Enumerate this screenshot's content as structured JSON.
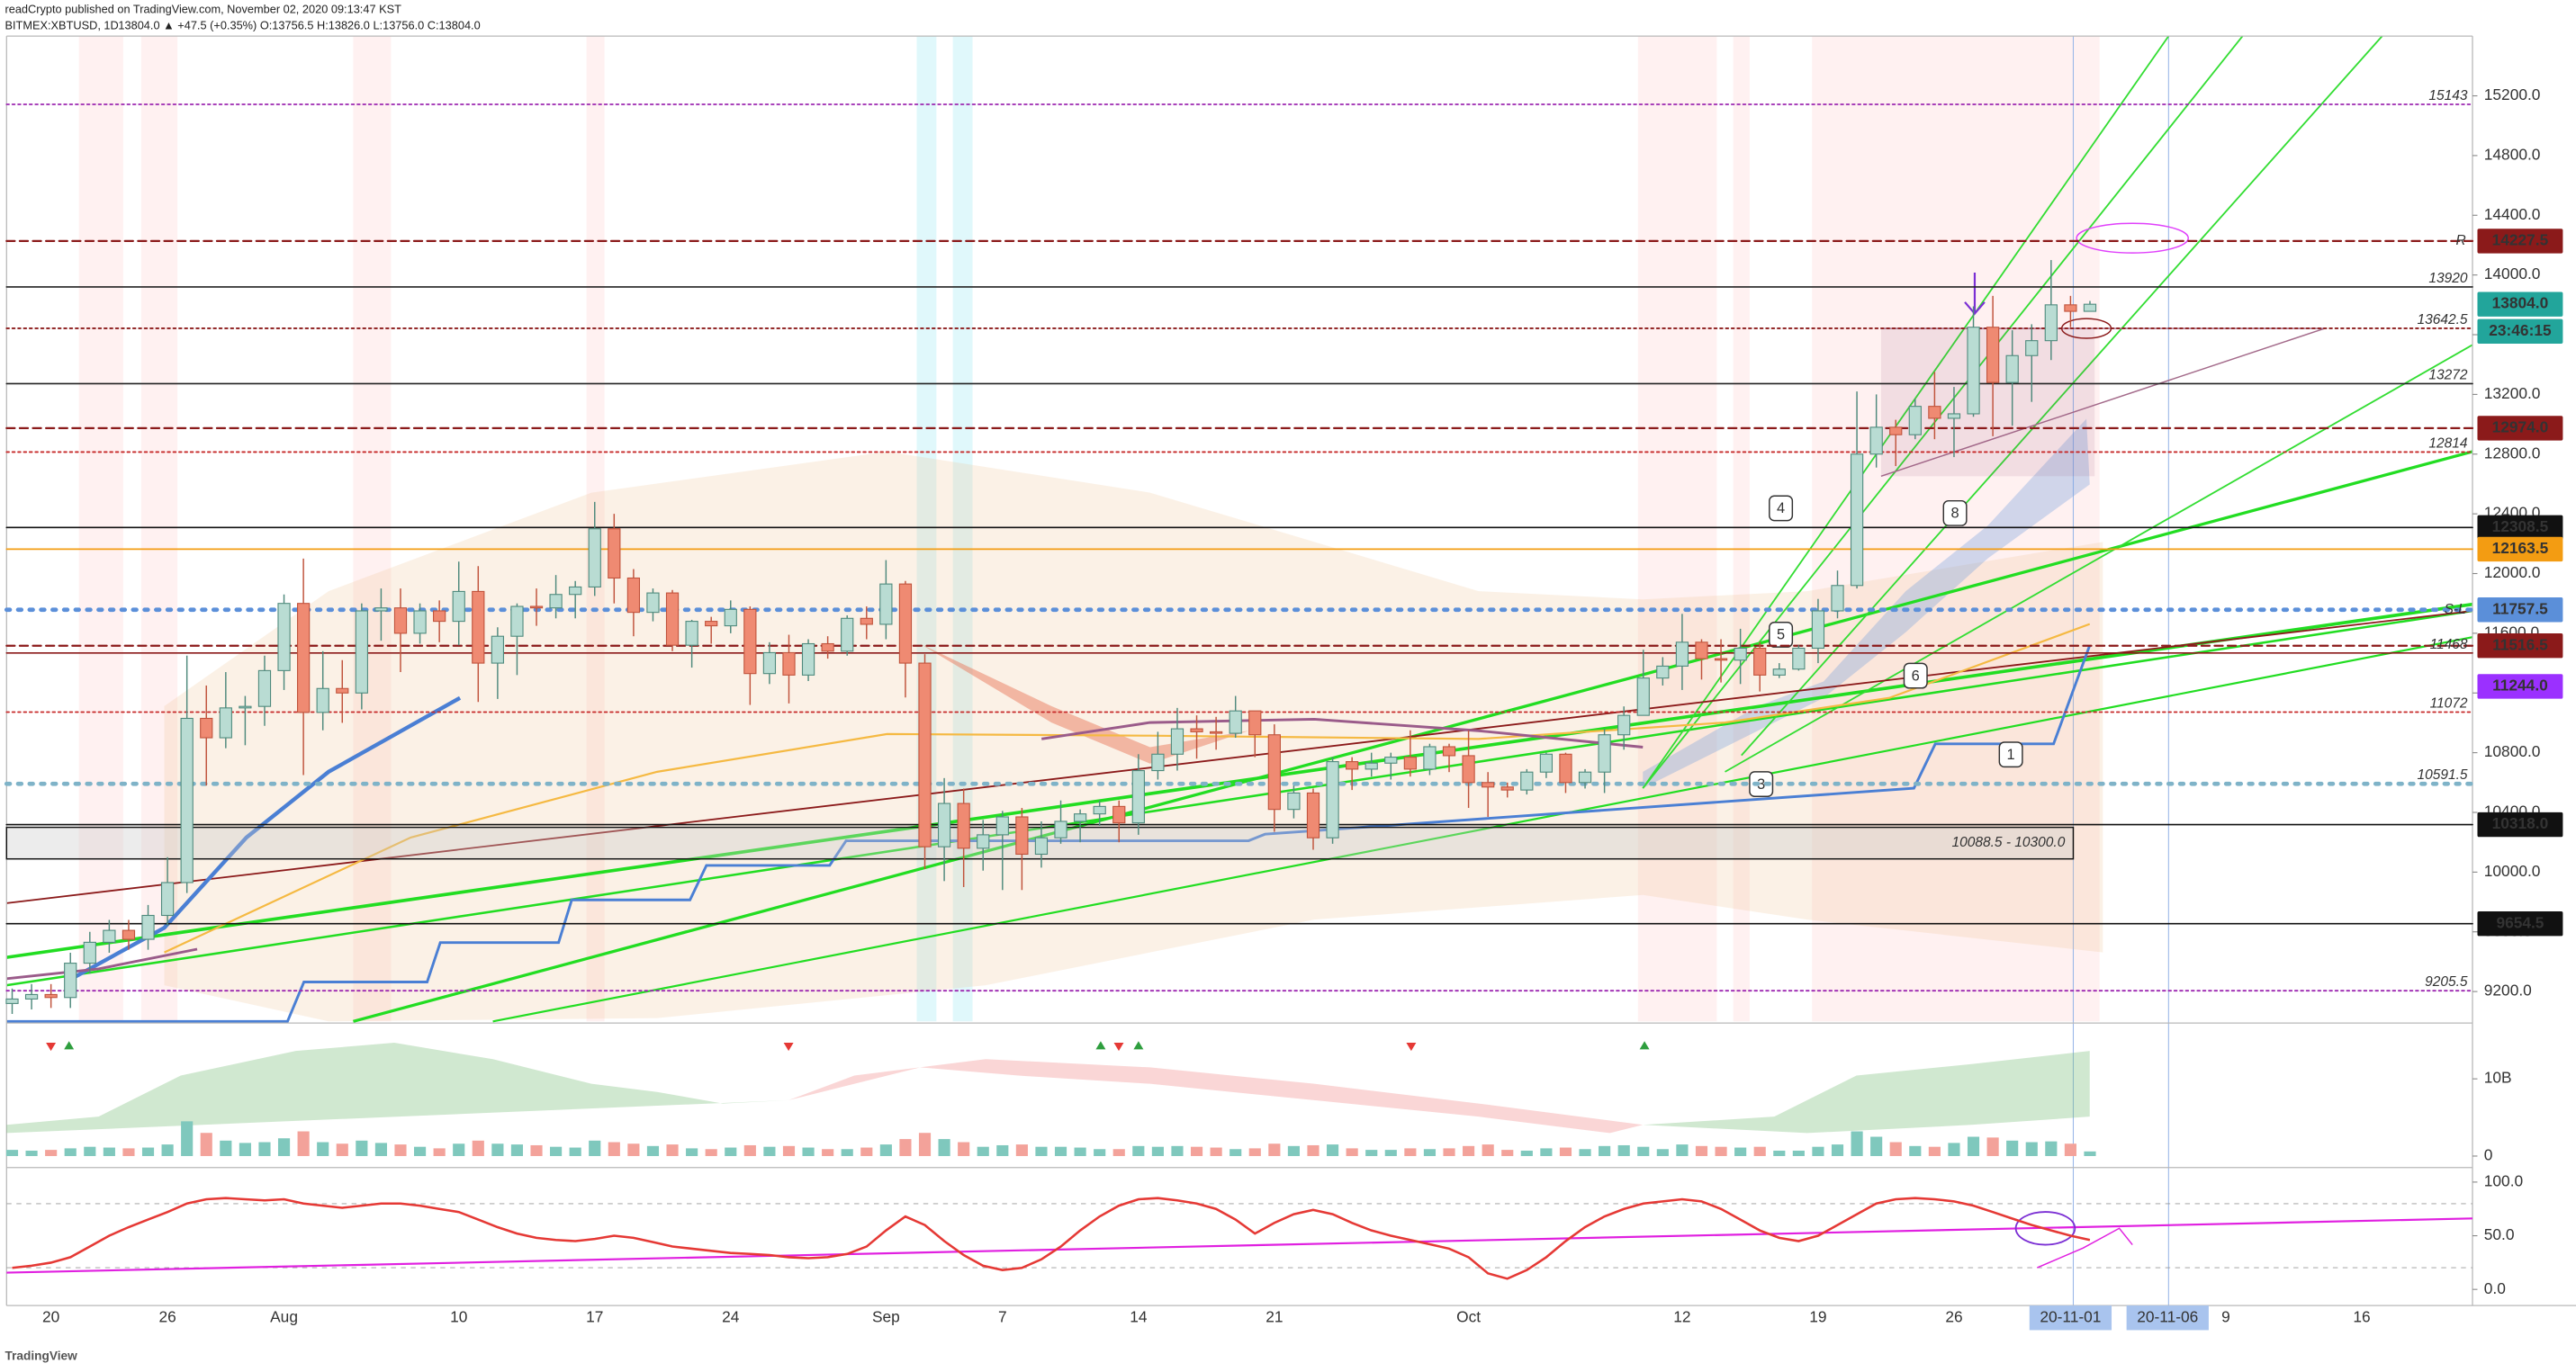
{
  "header": {
    "publisher": "readCrypto published on TradingView.com, November 02, 2020 09:13:47 KST",
    "symbol": "BITMEX:XBTUSD, 1D",
    "ohlc": "13804.0 ▲ +47.5 (+0.35%) O:13756.5 H:13826.0 L:13756.0 C:13804.0"
  },
  "footer": {
    "logo": "TradingView"
  },
  "chart_data": {
    "type": "candlestick",
    "categories": [
      null,
      null,
      "20",
      null,
      null,
      null,
      null,
      null,
      "26",
      null,
      null,
      null,
      null,
      null,
      "Aug",
      null,
      null,
      null,
      null,
      null,
      null,
      null,
      null,
      "10",
      null,
      null,
      null,
      null,
      null,
      null,
      "17",
      null,
      null,
      null,
      null,
      null,
      null,
      "24",
      null,
      null,
      null,
      null,
      null,
      null,
      null,
      "Sep",
      null,
      null,
      null,
      null,
      null,
      "7",
      null,
      null,
      null,
      null,
      null,
      null,
      "14",
      null,
      null,
      null,
      null,
      null,
      null,
      "21",
      null,
      null,
      null,
      null,
      null,
      null,
      null,
      null,
      null,
      "Oct",
      null,
      null,
      null,
      null,
      null,
      null,
      null,
      null,
      null,
      null,
      "12",
      null,
      null,
      null,
      null,
      null,
      null,
      "19",
      null,
      null,
      null,
      null,
      null,
      null,
      "26",
      null,
      null,
      null,
      null,
      null,
      "20-11-01",
      null,
      null,
      null,
      null,
      "20-11-06",
      null,
      null,
      "9",
      null,
      null,
      null,
      null,
      null,
      null,
      "16",
      null,
      null,
      null,
      null,
      null,
      null
    ],
    "open": [
      9120,
      9150,
      9180,
      9160,
      9390,
      9530,
      9610,
      9550,
      9710,
      9930,
      11030,
      10900,
      11100,
      11110,
      11350,
      11800,
      11070,
      11230,
      11200,
      11750,
      11770,
      11600,
      11750,
      11680,
      11880,
      11400,
      11580,
      11780,
      11770,
      11860,
      11910,
      12300,
      11970,
      11740,
      11870,
      11520,
      11680,
      11650,
      11760,
      11330,
      11470,
      11320,
      11530,
      11480,
      11700,
      11660,
      11930,
      11400,
      10170,
      10460,
      10160,
      10250,
      10370,
      10120,
      10230,
      10340,
      10390,
      10440,
      10330,
      10680,
      10790,
      10960,
      10940,
      10930,
      11080,
      10920,
      10420,
      10530,
      10230,
      10740,
      10690,
      10730,
      10770,
      10690,
      10840,
      10780,
      10600,
      10570,
      10550,
      10670,
      10790,
      10600,
      10670,
      10920,
      11050,
      11300,
      11380,
      11540,
      11430,
      11420,
      11500,
      11320,
      11360,
      11500,
      11750,
      11920,
      12800,
      12980,
      12930,
      13120,
      13040,
      13070,
      13650,
      13280,
      13460,
      13560,
      13800,
      13756.5,
      null,
      null,
      null,
      null,
      null,
      null,
      null,
      null,
      null,
      null,
      null,
      null,
      null,
      null,
      null,
      null,
      null,
      null,
      null,
      null
    ],
    "high": [
      9220,
      9250,
      9250,
      9460,
      9600,
      9680,
      9680,
      9780,
      10100,
      11450,
      11250,
      11340,
      11180,
      11450,
      11860,
      12100,
      11480,
      11420,
      11800,
      11900,
      11900,
      11800,
      11820,
      12080,
      12050,
      11640,
      11800,
      11900,
      11990,
      11950,
      12480,
      12400,
      12030,
      11900,
      11890,
      11690,
      11710,
      11820,
      11780,
      11540,
      11590,
      11560,
      11580,
      11720,
      11780,
      12090,
      11950,
      11460,
      10630,
      10560,
      10350,
      10410,
      10430,
      10340,
      10480,
      10420,
      10480,
      10480,
      10790,
      10940,
      11100,
      11050,
      11040,
      11180,
      11080,
      10990,
      10580,
      10560,
      10770,
      10770,
      10800,
      10800,
      10950,
      10860,
      10860,
      10950,
      10670,
      10600,
      10690,
      10800,
      10800,
      10690,
      10960,
      11110,
      11490,
      11440,
      11730,
      11560,
      11560,
      11630,
      11540,
      11400,
      11520,
      11830,
      12020,
      13220,
      13200,
      13030,
      13170,
      13350,
      13250,
      13790,
      13860,
      13630,
      13670,
      14100,
      13860,
      13826,
      null,
      null,
      null,
      null,
      null,
      null,
      null,
      null,
      null,
      null,
      null,
      null,
      null,
      null,
      null,
      null,
      null,
      null,
      null,
      null
    ],
    "low": [
      9050,
      9080,
      9090,
      9090,
      9320,
      9460,
      9480,
      9480,
      9640,
      9860,
      10580,
      10830,
      10850,
      10980,
      11220,
      10650,
      10950,
      11000,
      11090,
      11550,
      11340,
      11530,
      11540,
      11520,
      11140,
      11160,
      11320,
      11650,
      11700,
      11700,
      11850,
      11800,
      11580,
      11680,
      11480,
      11370,
      11530,
      11600,
      11120,
      11260,
      11130,
      11280,
      11430,
      11450,
      11560,
      11560,
      11170,
      10020,
      9940,
      9900,
      10010,
      9880,
      9880,
      10030,
      10190,
      10200,
      10310,
      10200,
      10250,
      10620,
      10680,
      10760,
      10820,
      10900,
      10770,
      10270,
      10360,
      10150,
      10190,
      10550,
      10640,
      10620,
      10640,
      10650,
      10670,
      10430,
      10370,
      10500,
      10520,
      10630,
      10530,
      10560,
      10530,
      10820,
      11050,
      11250,
      11220,
      11290,
      11270,
      11260,
      11210,
      11300,
      11350,
      11400,
      11700,
      11900,
      12710,
      12720,
      12900,
      12900,
      12780,
      13050,
      12920,
      12990,
      13150,
      13430,
      13650,
      13756,
      null,
      null,
      null,
      null,
      null,
      null,
      null,
      null,
      null,
      null,
      null,
      null,
      null,
      null,
      null,
      null,
      null,
      null,
      null,
      null
    ],
    "close": [
      9150,
      9180,
      9160,
      9390,
      9530,
      9610,
      9550,
      9710,
      9930,
      11030,
      10900,
      11100,
      11110,
      11350,
      11800,
      11070,
      11230,
      11200,
      11750,
      11770,
      11600,
      11750,
      11680,
      11880,
      11400,
      11580,
      11780,
      11770,
      11860,
      11910,
      12300,
      11970,
      11740,
      11870,
      11520,
      11680,
      11650,
      11760,
      11330,
      11470,
      11320,
      11530,
      11480,
      11700,
      11660,
      11930,
      11400,
      10170,
      10460,
      10160,
      10250,
      10370,
      10120,
      10230,
      10340,
      10390,
      10440,
      10330,
      10680,
      10790,
      10960,
      10940,
      10930,
      11080,
      10920,
      10420,
      10530,
      10230,
      10740,
      10690,
      10730,
      10770,
      10690,
      10840,
      10780,
      10600,
      10570,
      10550,
      10670,
      10790,
      10600,
      10670,
      10920,
      11050,
      11300,
      11380,
      11540,
      11430,
      11420,
      11500,
      11320,
      11360,
      11500,
      11750,
      11920,
      12800,
      12980,
      12930,
      13120,
      13040,
      13070,
      13650,
      13280,
      13460,
      13560,
      13800,
      13756.5,
      13804,
      null,
      null,
      null,
      null,
      null,
      null,
      null,
      null,
      null,
      null,
      null,
      null,
      null,
      null,
      null,
      null,
      null,
      null,
      null,
      null
    ],
    "up_color": "#b9dcd3",
    "up_stroke": "#4f8a7d",
    "down_color": "#ef8a72",
    "down_stroke": "#c0533c",
    "ylim": [
      9000,
      15600
    ],
    "yticks": [
      {
        "value": 9200,
        "label": "9200.0"
      },
      {
        "value": 9600,
        "label": "9600.0"
      },
      {
        "value": 10000,
        "label": "10000.0"
      },
      {
        "value": 10400,
        "label": "10400.0"
      },
      {
        "value": 10800,
        "label": "10800.0"
      },
      {
        "value": 11200,
        "label": "11200.0"
      },
      {
        "value": 11600,
        "label": "11600.0"
      },
      {
        "value": 12000,
        "label": "12000.0"
      },
      {
        "value": 12400,
        "label": "12400.0"
      },
      {
        "value": 12800,
        "label": "12800.0"
      },
      {
        "value": 13200,
        "label": "13200.0"
      },
      {
        "value": 13600,
        "label": "13600.0"
      },
      {
        "value": 14000,
        "label": "14000.0"
      },
      {
        "value": 14400,
        "label": "14400.0"
      },
      {
        "value": 14800,
        "label": "14800.0"
      },
      {
        "value": 15200,
        "label": "15200.0"
      }
    ],
    "grid": false,
    "levels": [
      {
        "value": 15143,
        "color": "#9c27b0",
        "style": "dotted",
        "display": "label"
      },
      {
        "value": 14227.5,
        "color": "#8b1a1a",
        "style": "dashed",
        "display": "badge",
        "tag": "R"
      },
      {
        "value": 13920,
        "color": "#222222",
        "style": "solid",
        "display": "label"
      },
      {
        "value": 13804,
        "label": "13804.0",
        "color": "#22a59b",
        "style": "none",
        "display": "badge",
        "countdown": "23:46:15"
      },
      {
        "value": 13642.5,
        "color": "#8b1a1a",
        "style": "dotted",
        "display": "label"
      },
      {
        "value": 13272,
        "color": "#222222",
        "style": "solid",
        "display": "label"
      },
      {
        "value": 12974,
        "label": "12974.0",
        "color": "#8b1a1a",
        "style": "dashed",
        "display": "badge"
      },
      {
        "value": 12814,
        "color": "#c62828",
        "style": "dotted",
        "display": "label"
      },
      {
        "value": 12308.5,
        "color": "#111111",
        "style": "solid",
        "display": "badge"
      },
      {
        "value": 12163.5,
        "color": "#f39c12",
        "style": "solid",
        "display": "badge"
      },
      {
        "value": 11757.5,
        "color": "#5b8fd9",
        "style": "bigdot",
        "display": "badge",
        "tag": "S-L"
      },
      {
        "value": 11516.5,
        "color": "#8b1a1a",
        "style": "dashed",
        "display": "badge"
      },
      {
        "value": 11468,
        "color": "#8b1a1a",
        "style": "solid",
        "display": "label"
      },
      {
        "value": 11244,
        "label": "11244.0",
        "color": "#9b30ff",
        "style": "none",
        "display": "badge"
      },
      {
        "value": 11072,
        "color": "#c62828",
        "style": "dotted",
        "display": "label"
      },
      {
        "value": 10591.5,
        "color": "#7fb3c8",
        "style": "bigdot",
        "display": "label"
      },
      {
        "value": 10318,
        "label": "10318.0",
        "color": "#111111",
        "style": "solid",
        "display": "badge"
      },
      {
        "value": 9654.5,
        "color": "#111111",
        "style": "solid",
        "display": "badge"
      },
      {
        "value": 9205.5,
        "color": "#9c27b0",
        "style": "dotted",
        "display": "label"
      }
    ],
    "zone": {
      "low": 10088.5,
      "high": 10300,
      "label": "10088.5 - 10300.0"
    },
    "annotations": [
      "1",
      "3",
      "4",
      "5",
      "6",
      "8"
    ],
    "volume": {
      "values": [
        0.8,
        0.7,
        0.8,
        1.0,
        1.2,
        1.1,
        1.0,
        1.1,
        1.5,
        4.5,
        3.0,
        2.0,
        1.7,
        1.8,
        2.3,
        3.2,
        1.8,
        1.6,
        2.0,
        1.7,
        1.5,
        1.2,
        1.0,
        1.6,
        2.0,
        1.6,
        1.5,
        1.4,
        1.2,
        1.1,
        2.0,
        1.8,
        1.6,
        1.3,
        1.5,
        1.0,
        0.9,
        1.1,
        1.4,
        1.2,
        1.3,
        1.1,
        0.9,
        0.9,
        1.1,
        1.5,
        2.2,
        3.0,
        2.2,
        1.8,
        1.2,
        1.4,
        1.5,
        1.2,
        1.2,
        1.1,
        0.9,
        0.9,
        1.3,
        1.2,
        1.3,
        1.2,
        1.1,
        0.9,
        1.0,
        1.6,
        1.3,
        1.4,
        1.5,
        1.0,
        0.8,
        0.8,
        1.0,
        0.9,
        1.0,
        1.3,
        1.5,
        0.8,
        0.7,
        1.0,
        1.1,
        0.9,
        1.3,
        1.4,
        1.2,
        0.9,
        1.5,
        1.3,
        1.2,
        1.1,
        1.2,
        0.7,
        0.7,
        1.2,
        1.5,
        3.2,
        2.5,
        1.8,
        1.3,
        1.2,
        1.7,
        2.5,
        2.4,
        2.0,
        1.8,
        1.9,
        1.6,
        0.6,
        null,
        null,
        null,
        null,
        null,
        null,
        null,
        null,
        null,
        null,
        null,
        null,
        null,
        null,
        null,
        null,
        null,
        null,
        null,
        null
      ],
      "ylim": [
        0,
        16.8
      ],
      "yticks": [
        0,
        {
          "value": 10,
          "label": "10B"
        }
      ],
      "up_color": "#7fc8bd",
      "down_color": "#f3a29a"
    },
    "oscillator": {
      "values": [
        20,
        22,
        25,
        30,
        40,
        50,
        58,
        65,
        72,
        80,
        84,
        85,
        84,
        83,
        84,
        80,
        78,
        76,
        78,
        80,
        80,
        78,
        75,
        72,
        65,
        58,
        52,
        48,
        46,
        45,
        47,
        50,
        48,
        44,
        40,
        38,
        36,
        34,
        33,
        32,
        30,
        29,
        30,
        33,
        40,
        55,
        68,
        60,
        45,
        32,
        22,
        18,
        20,
        28,
        40,
        55,
        68,
        78,
        84,
        85,
        83,
        80,
        75,
        65,
        52,
        62,
        70,
        74,
        70,
        62,
        55,
        50,
        46,
        42,
        38,
        30,
        15,
        10,
        18,
        30,
        45,
        58,
        68,
        75,
        80,
        82,
        84,
        82,
        75,
        65,
        55,
        48,
        45,
        50,
        60,
        70,
        80,
        84,
        85,
        84,
        82,
        78,
        72,
        66,
        60,
        55,
        50,
        46,
        null,
        null,
        null,
        null,
        null,
        null,
        null,
        null,
        null,
        null,
        null,
        null,
        null,
        null,
        null,
        null,
        null,
        null,
        null,
        null
      ],
      "ylim": [
        -15,
        112
      ],
      "yticks": [
        {
          "value": 0,
          "label": "0.0"
        },
        {
          "value": 50,
          "label": "50.0"
        },
        {
          "value": 100,
          "label": "100.0"
        }
      ],
      "color": "#e53935"
    }
  }
}
